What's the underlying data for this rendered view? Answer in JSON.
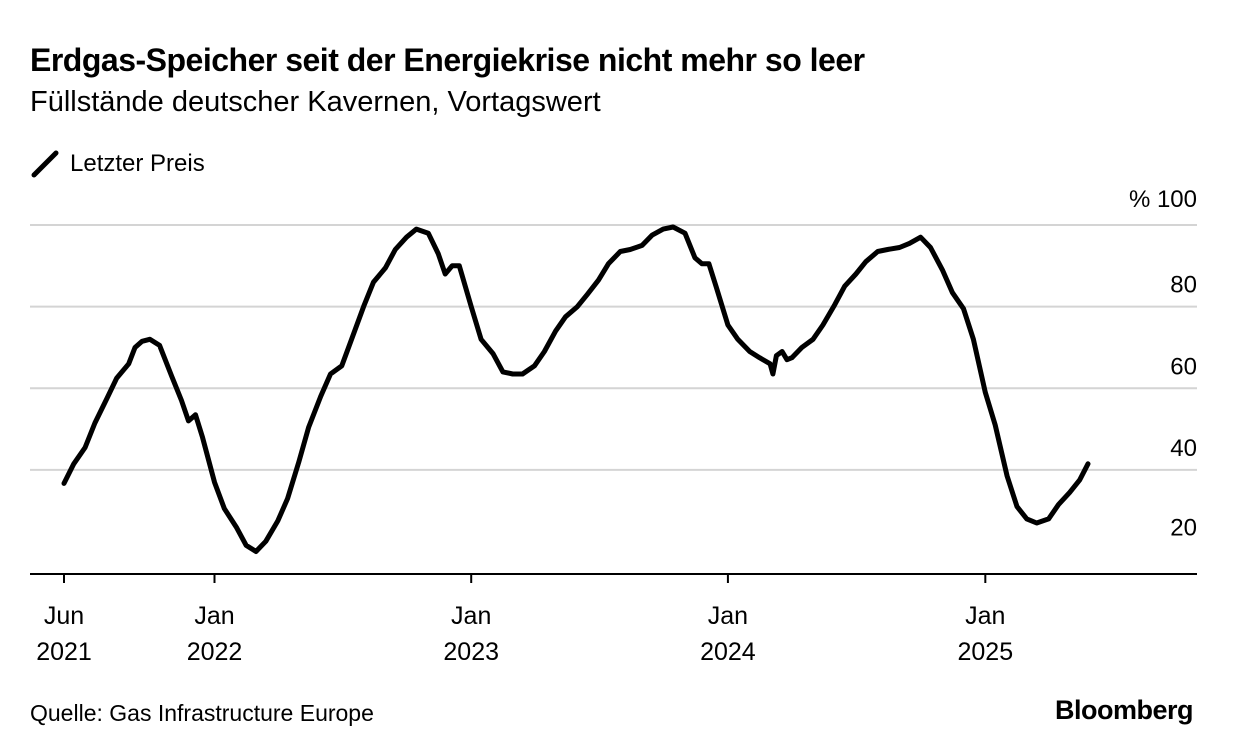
{
  "title": "Erdgas-Speicher seit der Energiekrise nicht mehr so leer",
  "subtitle": "Füllstände deutscher Kavernen, Vortagswert",
  "legend": {
    "label": "Letzter Preis",
    "color": "#000000"
  },
  "source": "Quelle: Gas Infrastructure Europe",
  "brand": "Bloomberg",
  "chart_data": {
    "type": "line",
    "x_ticks": [
      {
        "top": "Jun",
        "bottom": "2021",
        "date": "2021-06-01"
      },
      {
        "top": "Jan",
        "bottom": "2022",
        "date": "2022-01-01"
      },
      {
        "top": "Jan",
        "bottom": "2023",
        "date": "2023-01-01"
      },
      {
        "top": "Jan",
        "bottom": "2024",
        "date": "2024-01-01"
      },
      {
        "top": "Jan",
        "bottom": "2025",
        "date": "2025-01-01"
      }
    ],
    "y_axis": {
      "unit_label": "%",
      "ticks": [
        20,
        40,
        60,
        80,
        100
      ],
      "ylim": [
        14.5,
        100
      ],
      "position": "right"
    },
    "grid": true,
    "series": [
      {
        "name": "Letzter Preis",
        "color": "#000000",
        "points": [
          [
            "2021-06-01",
            36.7
          ],
          [
            "2021-06-15",
            41.5
          ],
          [
            "2021-07-01",
            45.5
          ],
          [
            "2021-07-15",
            51.5
          ],
          [
            "2021-08-01",
            57.5
          ],
          [
            "2021-08-15",
            62.5
          ],
          [
            "2021-09-01",
            66.0
          ],
          [
            "2021-09-10",
            70.0
          ],
          [
            "2021-09-20",
            71.5
          ],
          [
            "2021-10-01",
            72.0
          ],
          [
            "2021-10-15",
            70.5
          ],
          [
            "2021-11-01",
            63.0
          ],
          [
            "2021-11-15",
            57.0
          ],
          [
            "2021-11-25",
            52.0
          ],
          [
            "2021-12-05",
            53.5
          ],
          [
            "2021-12-15",
            48.0
          ],
          [
            "2022-01-01",
            37.0
          ],
          [
            "2022-01-15",
            30.5
          ],
          [
            "2022-02-01",
            26.0
          ],
          [
            "2022-02-15",
            21.5
          ],
          [
            "2022-03-01",
            20.0
          ],
          [
            "2022-03-15",
            22.5
          ],
          [
            "2022-04-01",
            27.5
          ],
          [
            "2022-04-15",
            33.0
          ],
          [
            "2022-05-01",
            42.0
          ],
          [
            "2022-05-15",
            50.5
          ],
          [
            "2022-06-01",
            58.0
          ],
          [
            "2022-06-15",
            63.5
          ],
          [
            "2022-07-01",
            65.5
          ],
          [
            "2022-07-15",
            72.0
          ],
          [
            "2022-08-01",
            80.0
          ],
          [
            "2022-08-15",
            86.0
          ],
          [
            "2022-09-01",
            89.5
          ],
          [
            "2022-09-15",
            94.0
          ],
          [
            "2022-10-01",
            97.0
          ],
          [
            "2022-10-15",
            99.0
          ],
          [
            "2022-11-01",
            98.0
          ],
          [
            "2022-11-15",
            93.0
          ],
          [
            "2022-11-25",
            88.0
          ],
          [
            "2022-12-05",
            90.0
          ],
          [
            "2022-12-15",
            90.0
          ],
          [
            "2023-01-01",
            80.0
          ],
          [
            "2023-01-15",
            72.0
          ],
          [
            "2023-02-01",
            68.5
          ],
          [
            "2023-02-15",
            64.0
          ],
          [
            "2023-03-01",
            63.5
          ],
          [
            "2023-03-15",
            63.5
          ],
          [
            "2023-04-01",
            65.5
          ],
          [
            "2023-04-15",
            69.0
          ],
          [
            "2023-05-01",
            74.0
          ],
          [
            "2023-05-15",
            77.5
          ],
          [
            "2023-06-01",
            80.0
          ],
          [
            "2023-06-15",
            83.0
          ],
          [
            "2023-07-01",
            86.5
          ],
          [
            "2023-07-15",
            90.5
          ],
          [
            "2023-08-01",
            93.5
          ],
          [
            "2023-08-15",
            94.0
          ],
          [
            "2023-09-01",
            95.0
          ],
          [
            "2023-09-15",
            97.5
          ],
          [
            "2023-10-01",
            99.0
          ],
          [
            "2023-10-15",
            99.5
          ],
          [
            "2023-11-01",
            98.0
          ],
          [
            "2023-11-15",
            92.0
          ],
          [
            "2023-11-25",
            90.5
          ],
          [
            "2023-12-05",
            90.5
          ],
          [
            "2023-12-15",
            85.0
          ],
          [
            "2024-01-01",
            75.5
          ],
          [
            "2024-01-15",
            72.0
          ],
          [
            "2024-02-01",
            69.0
          ],
          [
            "2024-02-15",
            67.5
          ],
          [
            "2024-03-01",
            66.0
          ],
          [
            "2024-03-05",
            63.5
          ],
          [
            "2024-03-10",
            68.0
          ],
          [
            "2024-03-18",
            69.0
          ],
          [
            "2024-03-25",
            67.0
          ],
          [
            "2024-04-01",
            67.5
          ],
          [
            "2024-04-15",
            70.0
          ],
          [
            "2024-05-01",
            72.0
          ],
          [
            "2024-05-15",
            75.5
          ],
          [
            "2024-06-01",
            80.5
          ],
          [
            "2024-06-15",
            85.0
          ],
          [
            "2024-07-01",
            88.0
          ],
          [
            "2024-07-15",
            91.0
          ],
          [
            "2024-08-01",
            93.5
          ],
          [
            "2024-08-15",
            94.0
          ],
          [
            "2024-09-01",
            94.5
          ],
          [
            "2024-09-15",
            95.5
          ],
          [
            "2024-10-01",
            97.0
          ],
          [
            "2024-10-15",
            94.5
          ],
          [
            "2024-11-01",
            89.0
          ],
          [
            "2024-11-15",
            83.5
          ],
          [
            "2024-12-01",
            79.5
          ],
          [
            "2024-12-15",
            72.0
          ],
          [
            "2025-01-01",
            59.0
          ],
          [
            "2025-01-15",
            51.0
          ],
          [
            "2025-02-01",
            38.5
          ],
          [
            "2025-02-15",
            31.0
          ],
          [
            "2025-03-01",
            28.0
          ],
          [
            "2025-03-15",
            27.0
          ],
          [
            "2025-04-01",
            28.0
          ],
          [
            "2025-04-15",
            31.5
          ],
          [
            "2025-05-01",
            34.5
          ],
          [
            "2025-05-15",
            37.5
          ],
          [
            "2025-05-27",
            41.5
          ]
        ]
      }
    ]
  }
}
